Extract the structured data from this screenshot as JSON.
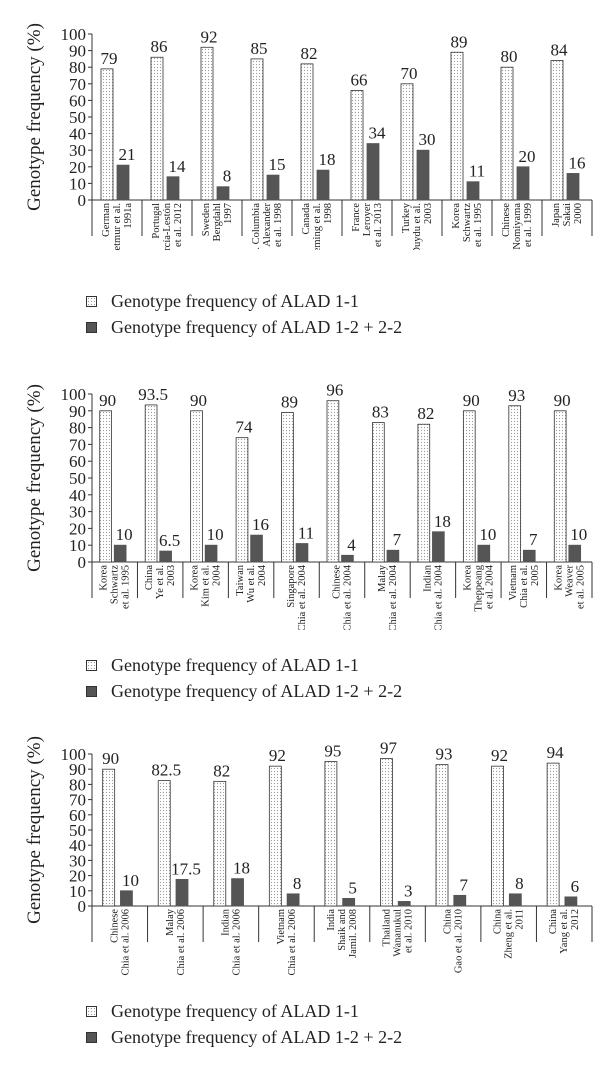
{
  "colors": {
    "light_bar": "#ffffff",
    "light_dots": "#9a9a9a",
    "dark_bar": "#555555",
    "axis": "#333333"
  },
  "legend_labels": {
    "light": "Genotype frequency of ALAD 1-1",
    "dark": "Genotype frequency of ALAD 1-2 + 2-2"
  },
  "chart_data": [
    {
      "type": "bar",
      "ylabel": "Genotype frequency (%)",
      "ylim": [
        0,
        100
      ],
      "yticks": [
        "0",
        "10",
        "20",
        "30",
        "40",
        "50",
        "60",
        "70",
        "80",
        "90",
        "100"
      ],
      "categories": [
        [
          "German",
          "Wetmur et al.",
          "1991a"
        ],
        [
          "Portugal",
          "García-Lestón",
          "et al. 2012"
        ],
        [
          "Sweden",
          "Bergdahl",
          "1997"
        ],
        [
          "B. Columbia",
          "Alexander",
          "et al. 1998"
        ],
        [
          "Canada",
          "Fleming et al.",
          "1998"
        ],
        [
          "France",
          "Leroyer",
          "et al. 2013"
        ],
        [
          "Turkey",
          "Duydu et al.",
          "2003"
        ],
        [
          "Korea",
          "Schwartz",
          "et al. 1995"
        ],
        [
          "Chinese",
          "Nomiyama",
          "et al. 1999"
        ],
        [
          "Japan",
          "Sakai",
          "2000"
        ]
      ],
      "series": [
        {
          "name": "Genotype frequency of ALAD 1-1",
          "values": [
            79,
            86,
            92,
            85,
            82,
            66,
            70,
            89,
            80,
            84
          ],
          "labels": [
            "79",
            "86",
            "92",
            "85",
            "82",
            "66",
            "70",
            "89",
            "80",
            "84"
          ]
        },
        {
          "name": "Genotype frequency of ALAD 1-2 + 2-2",
          "values": [
            21,
            14,
            8,
            15,
            18,
            34,
            30,
            11,
            20,
            16
          ],
          "labels": [
            "21",
            "14",
            "8",
            "15",
            "18",
            "34",
            "30",
            "11",
            "20",
            "16"
          ]
        }
      ],
      "legend": "below"
    },
    {
      "type": "bar",
      "ylabel": "Genotype frequency (%)",
      "ylim": [
        0,
        100
      ],
      "yticks": [
        "0",
        "10",
        "20",
        "30",
        "40",
        "50",
        "60",
        "70",
        "80",
        "90",
        "100"
      ],
      "categories": [
        [
          "Korea",
          "Schwartz",
          "et al. 1995"
        ],
        [
          "China",
          "Ye et al.",
          "2003"
        ],
        [
          "Korea",
          "Kim et al.",
          "2004"
        ],
        [
          "Taiwan",
          "Wu et al.",
          "2004"
        ],
        [
          "Singapore",
          "Chia et al. 2004"
        ],
        [
          "Chinese",
          "Chia et al. 2004"
        ],
        [
          "Malay",
          "Chia et al. 2004"
        ],
        [
          "Indian",
          "Chia et al. 2004"
        ],
        [
          "Korea",
          "Theppeang",
          "et al. 2004"
        ],
        [
          "Vietnam",
          "Chia et al.",
          "2005"
        ],
        [
          "Korea",
          "Weaver",
          "et al. 2005"
        ]
      ],
      "series": [
        {
          "name": "Genotype frequency of ALAD 1-1",
          "values": [
            90,
            93.5,
            90,
            74,
            89,
            96,
            83,
            82,
            90,
            93,
            90
          ],
          "labels": [
            "90",
            "93.5",
            "90",
            "74",
            "89",
            "96",
            "83",
            "82",
            "90",
            "93",
            "90"
          ]
        },
        {
          "name": "Genotype frequency of ALAD 1-2 + 2-2",
          "values": [
            10,
            6.5,
            10,
            16,
            11,
            4,
            7,
            18,
            10,
            7,
            10
          ],
          "labels": [
            "10",
            "6.5",
            "10",
            "16",
            "11",
            "4",
            "7",
            "18",
            "10",
            "7",
            "10"
          ]
        }
      ],
      "legend": "below"
    },
    {
      "type": "bar",
      "ylabel": "Genotype frequency (%)",
      "ylim": [
        0,
        100
      ],
      "yticks": [
        "0",
        "10",
        "20",
        "30",
        "40",
        "50",
        "60",
        "70",
        "80",
        "90",
        "100"
      ],
      "categories": [
        [
          "Chinese",
          "Chia et al. 2006"
        ],
        [
          "Malay",
          "Chia et al. 2006"
        ],
        [
          "Indian",
          "Chia et al. 2006"
        ],
        [
          "Vietnam",
          "Chia et al. 2006"
        ],
        [
          "India",
          "Shaik and",
          "Jamil. 2008"
        ],
        [
          "Thailand",
          "Wananukul",
          "et al. 2010"
        ],
        [
          "China",
          "Gao et al. 2010"
        ],
        [
          "China",
          "Zheng et al.",
          "2011"
        ],
        [
          "China",
          "Yang et al.",
          "2012"
        ]
      ],
      "series": [
        {
          "name": "Genotype frequency of ALAD 1-1",
          "values": [
            90,
            82.5,
            82,
            92,
            95,
            97,
            93,
            92,
            94
          ],
          "labels": [
            "90",
            "82.5",
            "82",
            "92",
            "95",
            "97",
            "93",
            "92",
            "94"
          ]
        },
        {
          "name": "Genotype frequency of ALAD 1-2 + 2-2",
          "values": [
            10,
            17.5,
            18,
            8,
            5,
            3,
            7,
            8,
            6
          ],
          "labels": [
            "10",
            "17.5",
            "18",
            "8",
            "5",
            "3",
            "7",
            "8",
            "6"
          ]
        }
      ],
      "legend": "below"
    }
  ]
}
